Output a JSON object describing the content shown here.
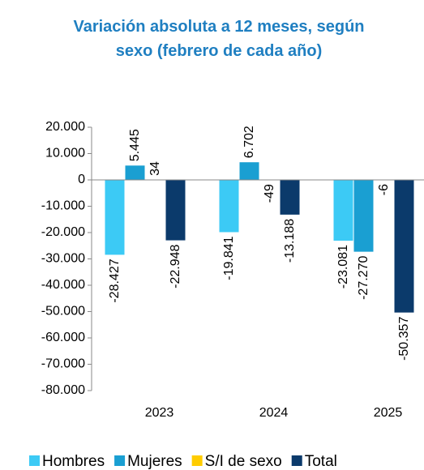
{
  "chart_data": {
    "type": "bar",
    "title": "Variación absoluta a 12 meses, según sexo (febrero de cada año)",
    "categories": [
      "2023",
      "2024",
      "2025"
    ],
    "series": [
      {
        "name": "Hombres",
        "color": "#3ccaf5",
        "values": [
          -28427,
          -19841,
          -23081
        ],
        "value_labels": [
          "-28.427",
          "-19.841",
          "-23.081"
        ]
      },
      {
        "name": "Mujeres",
        "color": "#1a9fd2",
        "values": [
          5445,
          6702,
          -27270
        ],
        "value_labels": [
          "5.445",
          "6.702",
          "-27.270"
        ]
      },
      {
        "name": "S/I de sexo",
        "color": "#ffcc00",
        "values": [
          34,
          -49,
          -6
        ]
      },
      {
        "name": "Total",
        "color": "#0b3a6b",
        "values": [
          -22948,
          -13188,
          -50357
        ],
        "value_labels": [
          "-22.948",
          "-13.188",
          "-50.357"
        ]
      }
    ],
    "ylim": [
      -80000,
      20000
    ],
    "yticks": [
      {
        "value": 20000,
        "label": "20.000"
      },
      {
        "value": 10000,
        "label": "10.000"
      },
      0,
      {
        "value": -10000,
        "label": "-10.000"
      },
      {
        "value": -20000,
        "label": "-20.000"
      },
      {
        "value": -30000,
        "label": "-30.000"
      },
      {
        "value": -40000,
        "label": "-40.000"
      },
      {
        "value": -50000,
        "label": "-50.000"
      },
      {
        "value": -60000,
        "label": "-60.000"
      },
      {
        "value": -70000,
        "label": "-70.000"
      },
      {
        "value": -80000,
        "label": "-80.000"
      }
    ],
    "legend": "bottom"
  }
}
